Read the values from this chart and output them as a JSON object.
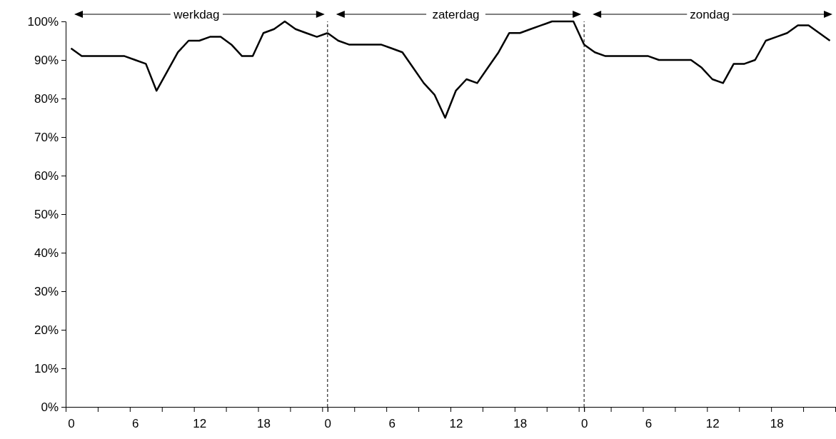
{
  "chart_data": [
    {
      "type": "line",
      "title": "werkdag",
      "x": [
        0,
        1,
        2,
        3,
        4,
        5,
        6,
        7,
        8,
        9,
        10,
        11,
        12,
        13,
        14,
        15,
        16,
        17,
        18,
        19,
        20,
        21,
        22,
        23,
        24
      ],
      "series": [
        {
          "color": "#000000",
          "values": [
            93,
            91,
            91,
            91,
            91,
            91,
            90,
            89,
            82,
            87,
            92,
            95,
            95,
            96,
            96,
            94,
            91,
            91,
            97,
            98,
            100,
            98,
            97,
            96,
            97
          ]
        }
      ],
      "xlim": [
        -0.5,
        24
      ],
      "xticks": [
        0,
        {
          "value": 2.5,
          "label": null
        },
        {
          "value": 5.5,
          "label": null
        },
        6,
        {
          "value": 8.5,
          "label": null
        },
        {
          "value": 11.5,
          "label": null
        },
        12,
        {
          "value": 14.5,
          "label": null
        },
        {
          "value": 17.5,
          "label": null
        },
        18,
        {
          "value": 20.5,
          "label": null
        },
        {
          "value": 23.5,
          "label": null
        }
      ],
      "ylim": [
        0,
        100
      ],
      "yticks": [
        {
          "value": 0,
          "label": "0%"
        },
        {
          "value": 10,
          "label": "10%"
        },
        {
          "value": 20,
          "label": "20%"
        },
        {
          "value": 30,
          "label": "30%"
        },
        {
          "value": 40,
          "label": "40%"
        },
        {
          "value": 50,
          "label": "50%"
        },
        {
          "value": 60,
          "label": "60%"
        },
        {
          "value": 70,
          "label": "70%"
        },
        {
          "value": 80,
          "label": "80%"
        },
        {
          "value": 90,
          "label": "90%"
        },
        {
          "value": 100,
          "label": "100%"
        }
      ],
      "line_style": "solid",
      "marker": "none",
      "grid": false
    },
    {
      "type": "line",
      "title": "zaterdag",
      "x": [
        0,
        1,
        2,
        3,
        4,
        5,
        6,
        7,
        8,
        9,
        10,
        11,
        12,
        13,
        14,
        15,
        16,
        17,
        18,
        19,
        20,
        21,
        22,
        23,
        24
      ],
      "series": [
        {
          "color": "#000000",
          "values": [
            97,
            95,
            94,
            94,
            94,
            94,
            93,
            92,
            88,
            84,
            81,
            75,
            82,
            85,
            84,
            88,
            92,
            97,
            97,
            98,
            99,
            100,
            100,
            100,
            94
          ]
        }
      ],
      "xlim": [
        0,
        24
      ],
      "xticks": [
        0,
        {
          "value": 2.5,
          "label": null
        },
        {
          "value": 5.5,
          "label": null
        },
        6,
        {
          "value": 8.5,
          "label": null
        },
        {
          "value": 11.5,
          "label": null
        },
        12,
        {
          "value": 14.5,
          "label": null
        },
        {
          "value": 17.5,
          "label": null
        },
        18,
        {
          "value": 20.5,
          "label": null
        },
        {
          "value": 23.5,
          "label": null
        }
      ],
      "ylim": [
        0,
        100
      ],
      "tick_labels": "x",
      "ref_lines": [
        {
          "axis": "x",
          "value": 0,
          "line_style": "dashed",
          "color": "#000000"
        }
      ],
      "line_style": "solid",
      "marker": "none",
      "grid": false
    },
    {
      "type": "line",
      "title": "zondag",
      "x": [
        0,
        1,
        2,
        3,
        4,
        5,
        6,
        7,
        8,
        9,
        10,
        11,
        12,
        13,
        14,
        15,
        16,
        17,
        18,
        19,
        20,
        21,
        22,
        23
      ],
      "series": [
        {
          "color": "#000000",
          "values": [
            94,
            92,
            91,
            91,
            91,
            91,
            91,
            90,
            90,
            90,
            90,
            88,
            85,
            84,
            89,
            89,
            90,
            95,
            96,
            97,
            99,
            99,
            97,
            95
          ]
        }
      ],
      "xlim": [
        0,
        23.5
      ],
      "xticks": [
        0,
        {
          "value": 2.5,
          "label": null
        },
        {
          "value": 5.5,
          "label": null
        },
        6,
        {
          "value": 8.5,
          "label": null
        },
        {
          "value": 11.5,
          "label": null
        },
        12,
        {
          "value": 14.5,
          "label": null
        },
        {
          "value": 17.5,
          "label": null
        },
        18,
        {
          "value": 20.5,
          "label": null
        },
        {
          "value": 23.5,
          "label": null
        }
      ],
      "ylim": [
        0,
        100
      ],
      "tick_labels": "x",
      "ref_lines": [
        {
          "axis": "x",
          "value": 0,
          "line_style": "dashed",
          "color": "#000000"
        }
      ],
      "line_style": "solid",
      "marker": "none",
      "grid": false
    }
  ]
}
